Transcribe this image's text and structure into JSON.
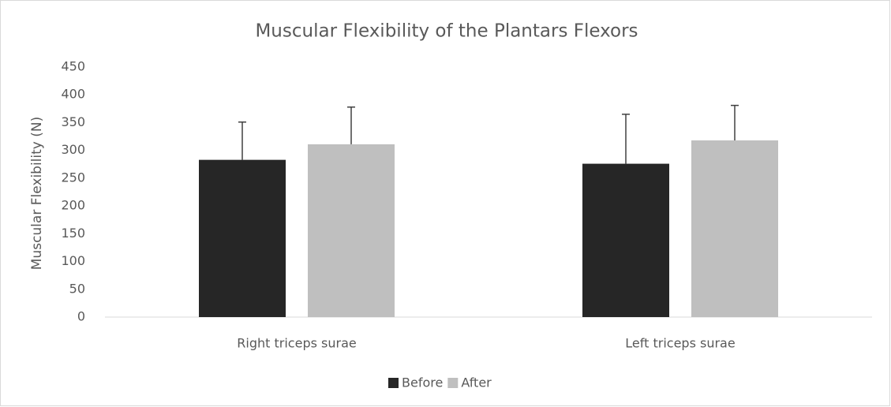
{
  "chart_data": {
    "type": "bar",
    "title": "Muscular Flexibility of the Plantars Flexors",
    "y_label": "Muscular Flexibility (N)",
    "categories": [
      "Right triceps surae",
      "Left triceps surae"
    ],
    "series": [
      {
        "name": "Before",
        "color": "#262626",
        "values": [
          283,
          276
        ],
        "errors": [
          68,
          89
        ]
      },
      {
        "name": "After",
        "color": "#bfbfbf",
        "values": [
          311,
          318
        ],
        "errors": [
          67,
          63
        ]
      }
    ],
    "ylim": [
      0,
      450
    ],
    "yticks": [
      0,
      50,
      100,
      150,
      200,
      250,
      300,
      350,
      400,
      450
    ],
    "legend": "bottom"
  }
}
